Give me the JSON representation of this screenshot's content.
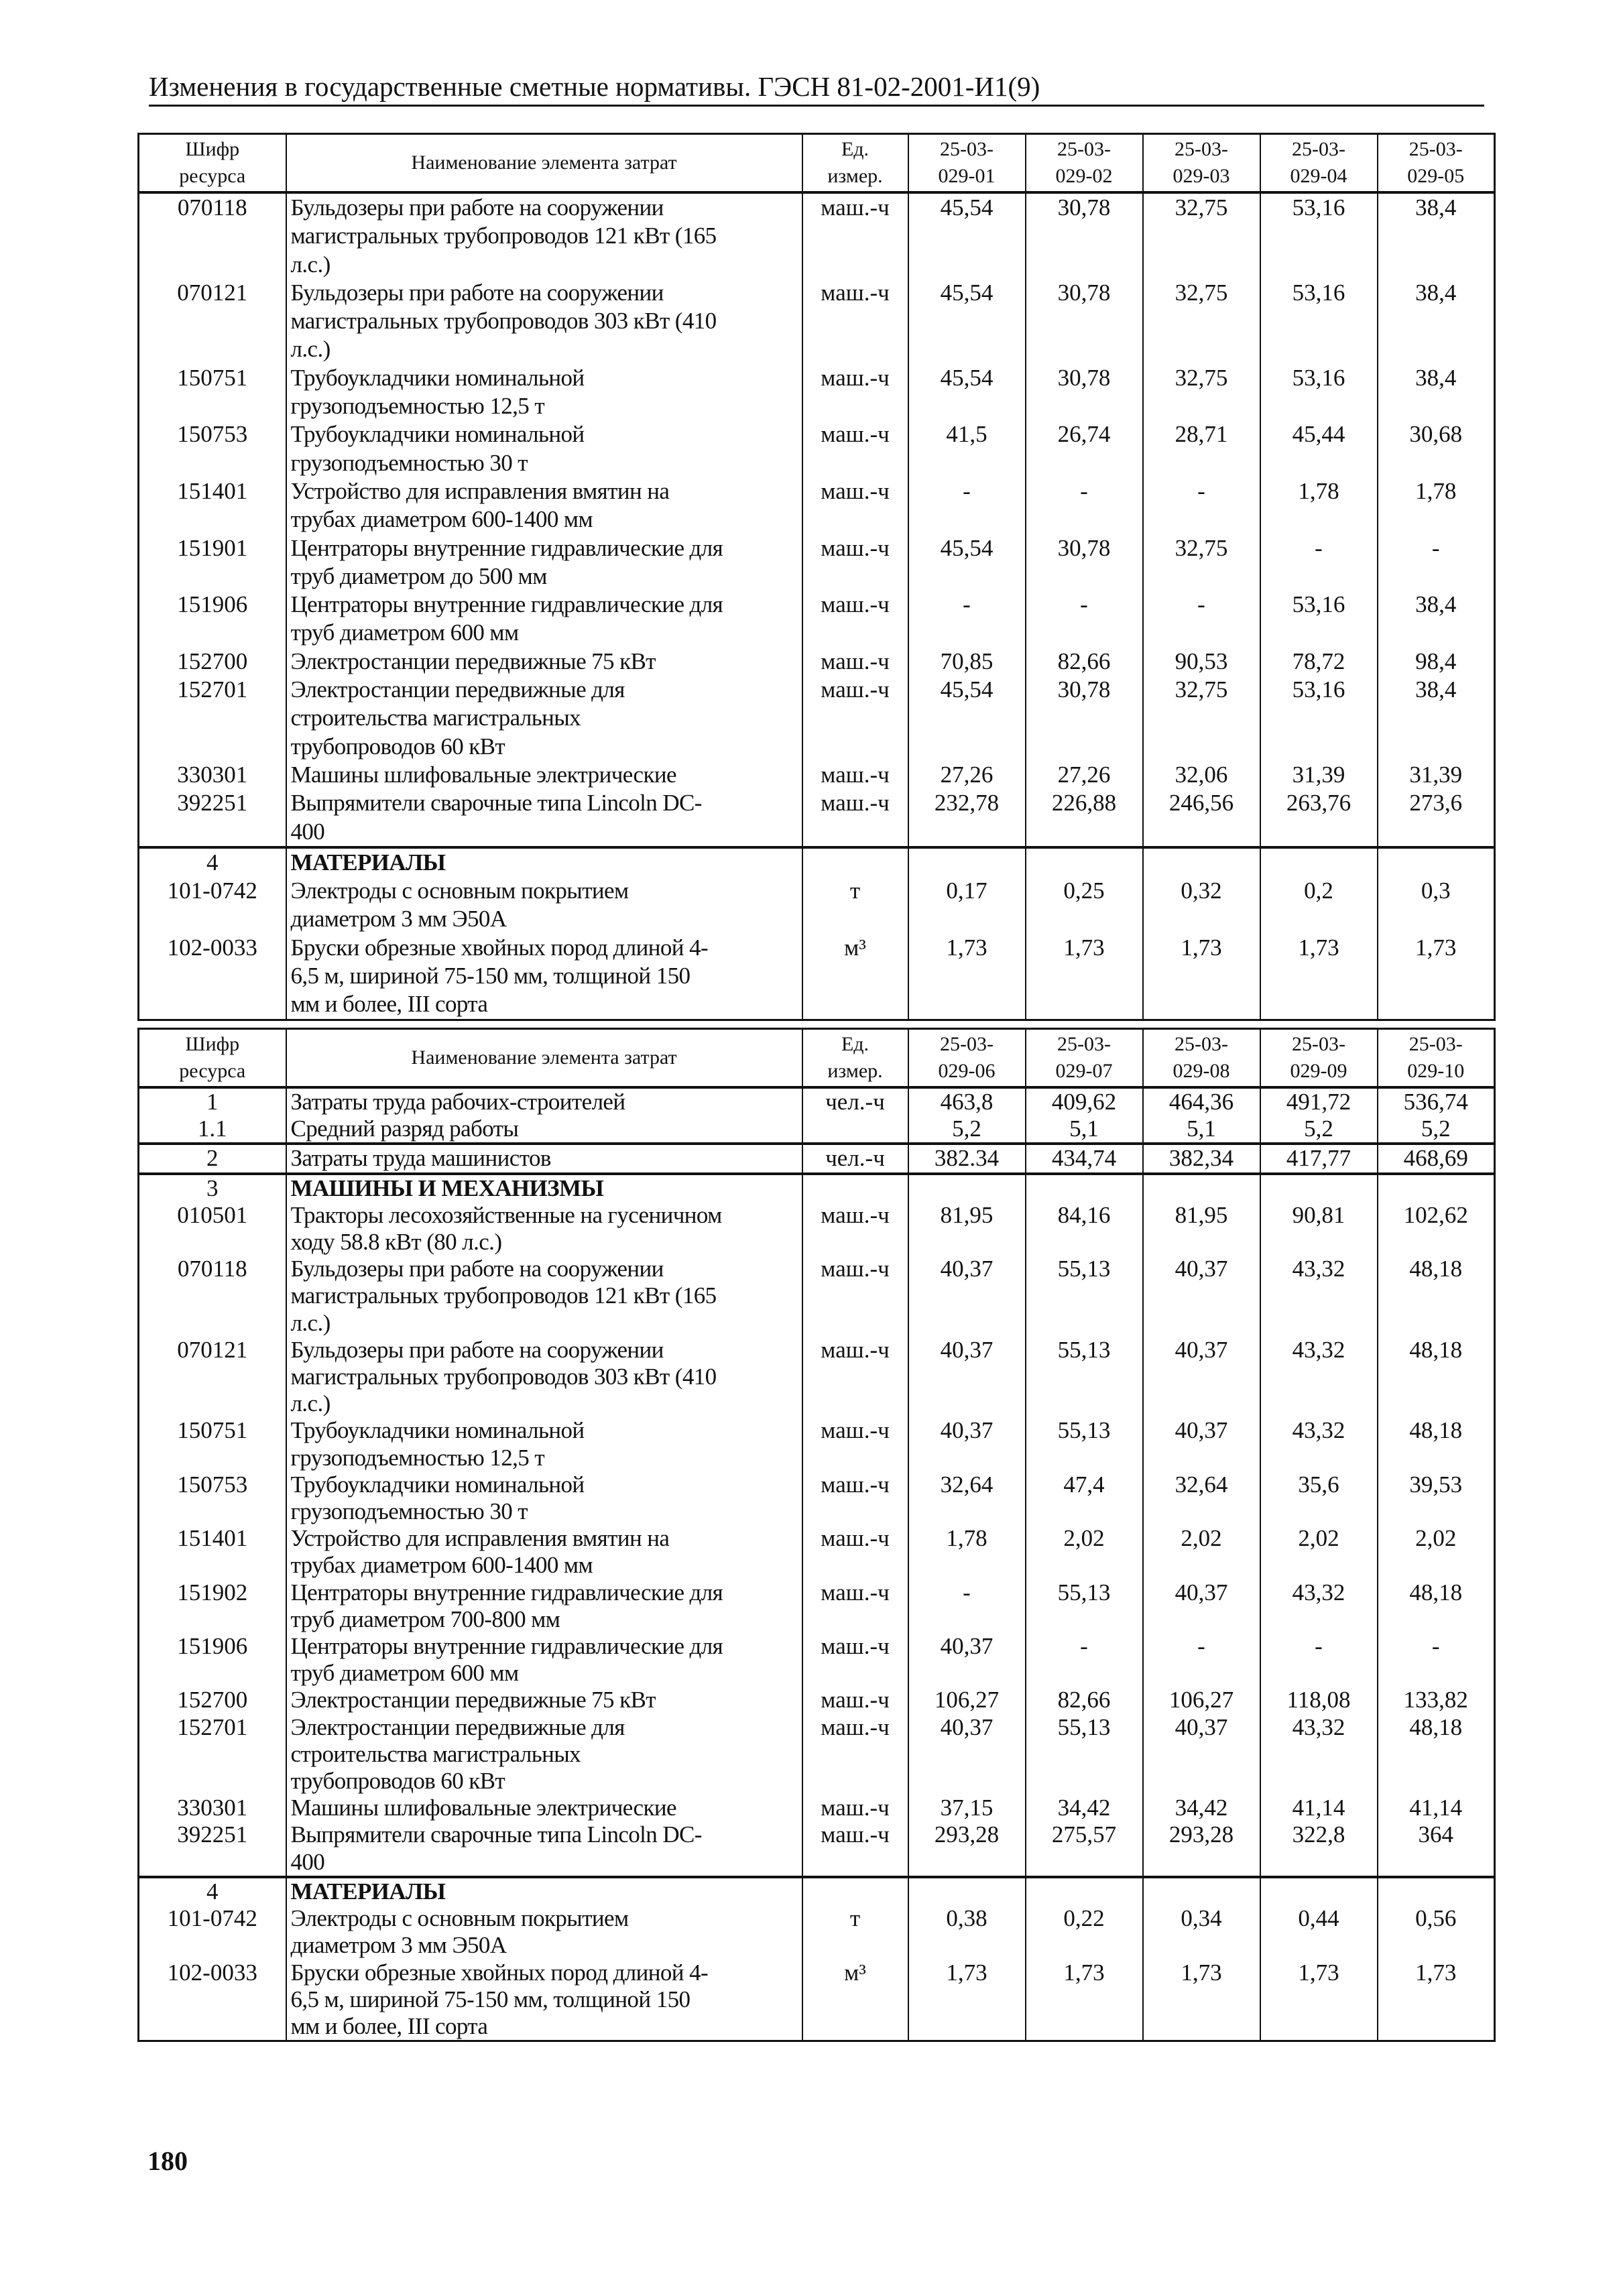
{
  "header": {
    "title": "Изменения в государственные сметные нормативы. ГЭСН 81-02-2001-И1(9)"
  },
  "tables": [
    {
      "headers": {
        "code": "Шифр\nресурса",
        "name": "Наименование элемента затрат",
        "unit": "Ед.\nизмер.",
        "columns": [
          "25-03-\n029-01",
          "25-03-\n029-02",
          "25-03-\n029-03",
          "25-03-\n029-04",
          "25-03-\n029-05"
        ]
      },
      "rows": [
        {
          "code": "070118",
          "name": "Бульдозеры при работе на сооружении\nмагистральных трубопроводов 121 кВт (165\nл.с.)",
          "unit": "маш.-ч",
          "values": [
            "45,54",
            "30,78",
            "32,75",
            "53,16",
            "38,4"
          ]
        },
        {
          "code": "070121",
          "name": "Бульдозеры при работе на сооружении\nмагистральных трубопроводов 303 кВт (410\nл.с.)",
          "unit": "маш.-ч",
          "values": [
            "45,54",
            "30,78",
            "32,75",
            "53,16",
            "38,4"
          ]
        },
        {
          "code": "150751",
          "name": "Трубоукладчики номинальной\nгрузоподъемностью 12,5 т",
          "unit": "маш.-ч",
          "values": [
            "45,54",
            "30,78",
            "32,75",
            "53,16",
            "38,4"
          ]
        },
        {
          "code": "150753",
          "name": "Трубоукладчики номинальной\nгрузоподъемностью 30 т",
          "unit": "маш.-ч",
          "values": [
            "41,5",
            "26,74",
            "28,71",
            "45,44",
            "30,68"
          ]
        },
        {
          "code": "151401",
          "name": "Устройство для исправления вмятин на\nтрубах диаметром 600-1400 мм",
          "unit": "маш.-ч",
          "values": [
            "-",
            "-",
            "-",
            "1,78",
            "1,78"
          ]
        },
        {
          "code": "151901",
          "name": "Центраторы внутренние гидравлические для\nтруб диаметром до 500 мм",
          "unit": "маш.-ч",
          "values": [
            "45,54",
            "30,78",
            "32,75",
            "-",
            "-"
          ]
        },
        {
          "code": "151906",
          "name": "Центраторы внутренние гидравлические для\nтруб диаметром 600 мм",
          "unit": "маш.-ч",
          "values": [
            "-",
            "-",
            "-",
            "53,16",
            "38,4"
          ]
        },
        {
          "code": "152700",
          "name": "Электростанции передвижные 75 кВт",
          "unit": "маш.-ч",
          "values": [
            "70,85",
            "82,66",
            "90,53",
            "78,72",
            "98,4"
          ]
        },
        {
          "code": "152701",
          "name": "Электростанции передвижные для\nстроительства магистральных\nтрубопроводов 60 кВт",
          "unit": "маш.-ч",
          "values": [
            "45,54",
            "30,78",
            "32,75",
            "53,16",
            "38,4"
          ]
        },
        {
          "code": "330301",
          "name": "Машины шлифовальные электрические",
          "unit": "маш.-ч",
          "values": [
            "27,26",
            "27,26",
            "32,06",
            "31,39",
            "31,39"
          ]
        },
        {
          "code": "392251",
          "name": "Выпрямители сварочные типа Lincoln DC-\n400",
          "unit": "маш.-ч",
          "values": [
            "232,78",
            "226,88",
            "246,56",
            "263,76",
            "273,6"
          ]
        },
        {
          "code": "4",
          "name": "МАТЕРИАЛЫ",
          "unit": "",
          "values": [
            "",
            "",
            "",
            "",
            ""
          ],
          "bold": true,
          "section_start": true
        },
        {
          "code": "101-0742",
          "name": "Электроды с основным покрытием\nдиаметром 3 мм Э50А",
          "unit": "т",
          "values": [
            "0,17",
            "0,25",
            "0,32",
            "0,2",
            "0,3"
          ]
        },
        {
          "code": "102-0033",
          "name": "Бруски обрезные хвойных пород длиной 4-\n6,5 м, шириной 75-150 мм, толщиной 150\nмм и более, III сорта",
          "unit": "м³",
          "values": [
            "1,73",
            "1,73",
            "1,73",
            "1,73",
            "1,73"
          ]
        }
      ]
    },
    {
      "headers": {
        "code": "Шифр\nресурса",
        "name": "Наименование элемента затрат",
        "unit": "Ед.\nизмер.",
        "columns": [
          "25-03-\n029-06",
          "25-03-\n029-07",
          "25-03-\n029-08",
          "25-03-\n029-09",
          "25-03-\n029-10"
        ]
      },
      "rows": [
        {
          "code": "1",
          "name": "Затраты труда рабочих-строителей",
          "unit": "чел.-ч",
          "values": [
            "463,8",
            "409,62",
            "464,36",
            "491,72",
            "536,74"
          ]
        },
        {
          "code": "1.1",
          "name": "Средний разряд работы",
          "unit": "",
          "values": [
            "5,2",
            "5,1",
            "5,1",
            "5,2",
            "5,2"
          ]
        },
        {
          "code": "2",
          "name": "Затраты труда машинистов",
          "unit": "чел.-ч",
          "values": [
            "382.34",
            "434,74",
            "382,34",
            "417,77",
            "468,69"
          ],
          "section_start": true
        },
        {
          "code": "3",
          "name": "МАШИНЫ И МЕХАНИЗМЫ",
          "unit": "",
          "values": [
            "",
            "",
            "",
            "",
            ""
          ],
          "bold": true,
          "section_start": true
        },
        {
          "code": "010501",
          "name": "Тракторы лесохозяйственные на гусеничном\nходу 58.8 кВт (80 л.с.)",
          "unit": "маш.-ч",
          "values": [
            "81,95",
            "84,16",
            "81,95",
            "90,81",
            "102,62"
          ]
        },
        {
          "code": "070118",
          "name": "Бульдозеры при работе на сооружении\nмагистральных трубопроводов 121 кВт (165\nл.с.)",
          "unit": "маш.-ч",
          "values": [
            "40,37",
            "55,13",
            "40,37",
            "43,32",
            "48,18"
          ]
        },
        {
          "code": "070121",
          "name": "Бульдозеры при работе на сооружении\nмагистральных трубопроводов 303 кВт (410\nл.с.)",
          "unit": "маш.-ч",
          "values": [
            "40,37",
            "55,13",
            "40,37",
            "43,32",
            "48,18"
          ]
        },
        {
          "code": "150751",
          "name": "Трубоукладчики номинальной\nгрузоподъемностью 12,5 т",
          "unit": "маш.-ч",
          "values": [
            "40,37",
            "55,13",
            "40,37",
            "43,32",
            "48,18"
          ]
        },
        {
          "code": "150753",
          "name": "Трубоукладчики номинальной\nгрузоподъемностью 30 т",
          "unit": "маш.-ч",
          "values": [
            "32,64",
            "47,4",
            "32,64",
            "35,6",
            "39,53"
          ]
        },
        {
          "code": "151401",
          "name": "Устройство для исправления вмятин на\nтрубах диаметром 600-1400 мм",
          "unit": "маш.-ч",
          "values": [
            "1,78",
            "2,02",
            "2,02",
            "2,02",
            "2,02"
          ]
        },
        {
          "code": "151902",
          "name": "Центраторы внутренние гидравлические для\nтруб диаметром 700-800 мм",
          "unit": "маш.-ч",
          "values": [
            "-",
            "55,13",
            "40,37",
            "43,32",
            "48,18"
          ]
        },
        {
          "code": "151906",
          "name": "Центраторы внутренние гидравлические для\nтруб диаметром 600 мм",
          "unit": "маш.-ч",
          "values": [
            "40,37",
            "-",
            "-",
            "-",
            "-"
          ]
        },
        {
          "code": "152700",
          "name": "Электростанции передвижные 75 кВт",
          "unit": "маш.-ч",
          "values": [
            "106,27",
            "82,66",
            "106,27",
            "118,08",
            "133,82"
          ]
        },
        {
          "code": "152701",
          "name": "Электростанции передвижные для\nстроительства магистральных\nтрубопроводов 60 кВт",
          "unit": "маш.-ч",
          "values": [
            "40,37",
            "55,13",
            "40,37",
            "43,32",
            "48,18"
          ]
        },
        {
          "code": "330301",
          "name": "Машины шлифовальные электрические",
          "unit": "маш.-ч",
          "values": [
            "37,15",
            "34,42",
            "34,42",
            "41,14",
            "41,14"
          ]
        },
        {
          "code": "392251",
          "name": "Выпрямители сварочные типа Lincoln DC-\n400",
          "unit": "маш.-ч",
          "values": [
            "293,28",
            "275,57",
            "293,28",
            "322,8",
            "364"
          ]
        },
        {
          "code": "4",
          "name": "МАТЕРИАЛЫ",
          "unit": "",
          "values": [
            "",
            "",
            "",
            "",
            ""
          ],
          "bold": true,
          "section_start": true
        },
        {
          "code": "101-0742",
          "name": "Электроды с основным покрытием\nдиаметром 3 мм Э50А",
          "unit": "т",
          "values": [
            "0,38",
            "0,22",
            "0,34",
            "0,44",
            "0,56"
          ]
        },
        {
          "code": "102-0033",
          "name": "Бруски обрезные хвойных пород длиной 4-\n6,5 м, шириной 75-150 мм, толщиной 150\nмм и более, III сорта",
          "unit": "м³",
          "values": [
            "1,73",
            "1,73",
            "1,73",
            "1,73",
            "1,73"
          ]
        }
      ]
    }
  ],
  "footer": {
    "page_number": "180"
  }
}
